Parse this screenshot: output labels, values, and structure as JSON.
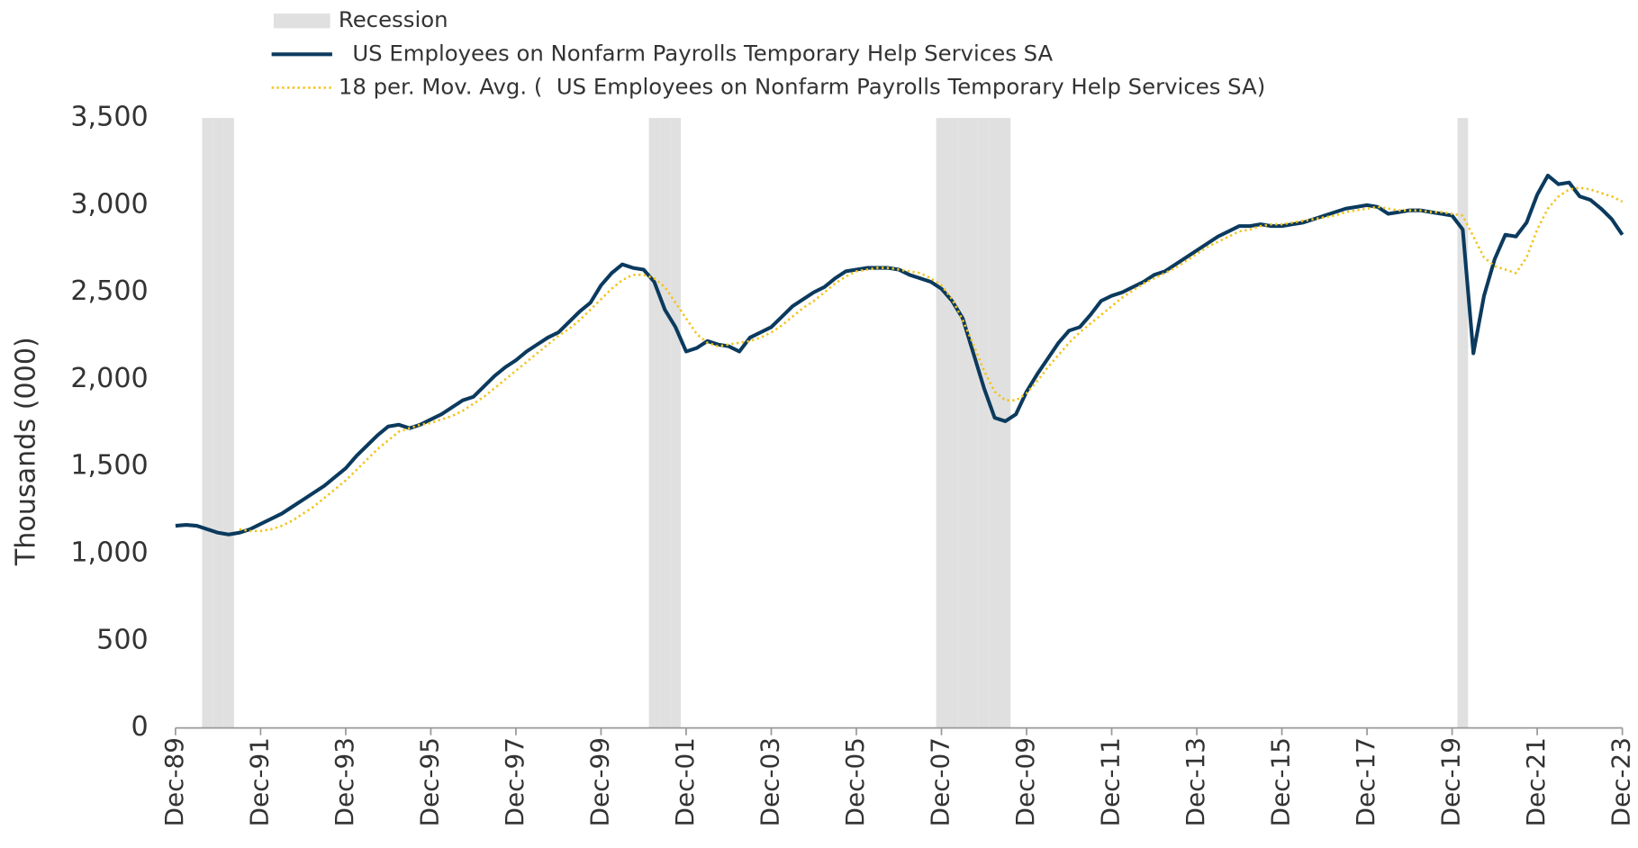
{
  "chart_data": {
    "type": "line",
    "y_label": "Thousands (000)",
    "ylim": [
      0,
      3500
    ],
    "yticks": [
      0,
      500,
      {
        "value": 1000,
        "label": "1,000"
      },
      {
        "value": 1500,
        "label": "1,500"
      },
      {
        "value": 2000,
        "label": "2,000"
      },
      {
        "value": 2500,
        "label": "2,500"
      },
      {
        "value": 3000,
        "label": "3,000"
      },
      {
        "value": 3500,
        "label": "3,500"
      }
    ],
    "categories": [
      "Dec-89",
      null,
      null,
      null,
      null,
      null,
      null,
      null,
      "Dec-91",
      null,
      null,
      null,
      null,
      null,
      null,
      null,
      "Dec-93",
      null,
      null,
      null,
      null,
      null,
      null,
      null,
      "Dec-95",
      null,
      null,
      null,
      null,
      null,
      null,
      null,
      "Dec-97",
      null,
      null,
      null,
      null,
      null,
      null,
      null,
      "Dec-99",
      null,
      null,
      null,
      null,
      null,
      null,
      null,
      "Dec-01",
      null,
      null,
      null,
      null,
      null,
      null,
      null,
      "Dec-03",
      null,
      null,
      null,
      null,
      null,
      null,
      null,
      "Dec-05",
      null,
      null,
      null,
      null,
      null,
      null,
      null,
      "Dec-07",
      null,
      null,
      null,
      null,
      null,
      null,
      null,
      "Dec-09",
      null,
      null,
      null,
      null,
      null,
      null,
      null,
      "Dec-11",
      null,
      null,
      null,
      null,
      null,
      null,
      null,
      "Dec-13",
      null,
      null,
      null,
      null,
      null,
      null,
      null,
      "Dec-15",
      null,
      null,
      null,
      null,
      null,
      null,
      null,
      "Dec-17",
      null,
      null,
      null,
      null,
      null,
      null,
      null,
      "Dec-19",
      null,
      null,
      null,
      null,
      null,
      null,
      null,
      "Dec-21",
      null,
      null,
      null,
      null,
      null,
      null,
      null,
      "Dec-23"
    ],
    "series": [
      {
        "name": "Recession",
        "type": "bar",
        "color": "#e0e0e0",
        "values": [
          0,
          0,
          0,
          3500,
          3500,
          3500,
          0,
          0,
          0,
          0,
          0,
          0,
          0,
          0,
          0,
          0,
          0,
          0,
          0,
          0,
          0,
          0,
          0,
          0,
          0,
          0,
          0,
          0,
          0,
          0,
          0,
          0,
          0,
          0,
          0,
          0,
          0,
          0,
          0,
          0,
          0,
          0,
          0,
          0,
          0,
          3500,
          3500,
          3500,
          0,
          0,
          0,
          0,
          0,
          0,
          0,
          0,
          0,
          0,
          0,
          0,
          0,
          0,
          0,
          0,
          0,
          0,
          0,
          0,
          0,
          0,
          0,
          0,
          3500,
          3500,
          3500,
          3500,
          3500,
          3500,
          3500,
          0,
          0,
          0,
          0,
          0,
          0,
          0,
          0,
          0,
          0,
          0,
          0,
          0,
          0,
          0,
          0,
          0,
          0,
          0,
          0,
          0,
          0,
          0,
          0,
          0,
          0,
          0,
          0,
          0,
          0,
          0,
          0,
          0,
          0,
          0,
          0,
          0,
          0,
          0,
          0,
          0,
          0,
          3500,
          0,
          0,
          0,
          0,
          0,
          0,
          0,
          0,
          0,
          0,
          0,
          0,
          0,
          0,
          0
        ]
      },
      {
        "name": "  US Employees on Nonfarm Payrolls Temporary Help Services SA",
        "type": "line",
        "style": "solid",
        "color": "#0b3a5e",
        "values": [
          1160,
          1165,
          1160,
          1140,
          1120,
          1110,
          1120,
          1140,
          1170,
          1200,
          1230,
          1270,
          1310,
          1350,
          1390,
          1440,
          1490,
          1560,
          1620,
          1680,
          1730,
          1740,
          1720,
          1740,
          1770,
          1800,
          1840,
          1880,
          1900,
          1960,
          2020,
          2070,
          2110,
          2160,
          2200,
          2240,
          2270,
          2330,
          2390,
          2440,
          2540,
          2610,
          2660,
          2640,
          2630,
          2560,
          2400,
          2300,
          2160,
          2180,
          2220,
          2200,
          2190,
          2160,
          2240,
          2270,
          2300,
          2360,
          2420,
          2460,
          2500,
          2530,
          2580,
          2620,
          2630,
          2640,
          2640,
          2640,
          2630,
          2600,
          2580,
          2560,
          2520,
          2450,
          2350,
          2150,
          1950,
          1780,
          1760,
          1800,
          1930,
          2030,
          2120,
          2210,
          2280,
          2300,
          2370,
          2450,
          2480,
          2500,
          2530,
          2560,
          2600,
          2620,
          2660,
          2700,
          2740,
          2780,
          2820,
          2850,
          2880,
          2880,
          2890,
          2880,
          2880,
          2890,
          2900,
          2920,
          2940,
          2960,
          2980,
          2990,
          3000,
          2990,
          2950,
          2960,
          2970,
          2970,
          2960,
          2950,
          2940,
          2860,
          2150,
          2480,
          2690,
          2830,
          2820,
          2900,
          3060,
          3170,
          3120,
          3130,
          3050,
          3030,
          2980,
          2920,
          2830
        ]
      },
      {
        "name": "18 per. Mov. Avg. (  US Employees on Nonfarm Payrolls Temporary Help Services SA)",
        "type": "line",
        "style": "dotted",
        "color": "#f2c318",
        "values": [
          null,
          null,
          null,
          null,
          null,
          null,
          1140,
          1130,
          1130,
          1140,
          1160,
          1190,
          1230,
          1270,
          1320,
          1370,
          1420,
          1480,
          1540,
          1600,
          1650,
          1700,
          1720,
          1740,
          1750,
          1770,
          1790,
          1820,
          1860,
          1900,
          1950,
          2000,
          2050,
          2100,
          2150,
          2200,
          2250,
          2290,
          2340,
          2400,
          2460,
          2520,
          2570,
          2600,
          2600,
          2580,
          2530,
          2440,
          2350,
          2260,
          2210,
          2190,
          2200,
          2210,
          2220,
          2240,
          2270,
          2310,
          2360,
          2410,
          2450,
          2500,
          2550,
          2590,
          2620,
          2630,
          2640,
          2640,
          2630,
          2620,
          2610,
          2580,
          2540,
          2460,
          2340,
          2200,
          2050,
          1930,
          1880,
          1880,
          1920,
          1990,
          2070,
          2140,
          2210,
          2270,
          2320,
          2370,
          2420,
          2470,
          2510,
          2550,
          2580,
          2610,
          2640,
          2680,
          2720,
          2760,
          2790,
          2820,
          2850,
          2860,
          2880,
          2890,
          2890,
          2900,
          2910,
          2920,
          2930,
          2940,
          2960,
          2970,
          2980,
          2990,
          2980,
          2970,
          2970,
          2970,
          2960,
          2960,
          2950,
          2940,
          2820,
          2700,
          2650,
          2630,
          2610,
          2700,
          2860,
          2980,
          3050,
          3090,
          3100,
          3090,
          3070,
          3050,
          3020
        ]
      }
    ],
    "legend": "top-left"
  }
}
